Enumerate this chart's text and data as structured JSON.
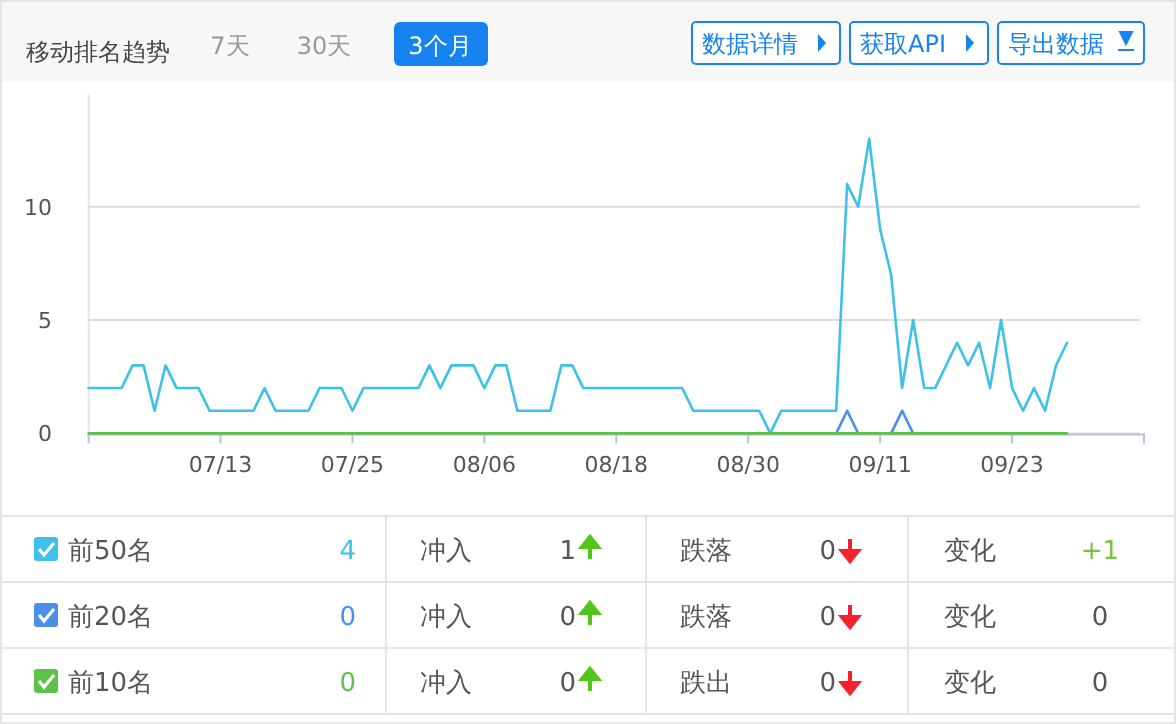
{
  "chart_data": {
    "type": "line",
    "title": "移动排名趋势",
    "x": [
      "--07-01",
      "--07-02",
      "--07-03",
      "--07-04",
      "--07-05",
      "--07-06",
      "--07-07",
      "--07-08",
      "--07-09",
      "--07-10",
      "--07-11",
      "--07-12",
      "--07-13",
      "--07-14",
      "--07-15",
      "--07-16",
      "--07-17",
      "--07-18",
      "--07-19",
      "--07-20",
      "--07-21",
      "--07-22",
      "--07-23",
      "--07-24",
      "--07-25",
      "--07-26",
      "--07-27",
      "--07-28",
      "--07-29",
      "--07-30",
      "--07-31",
      "--08-01",
      "--08-02",
      "--08-03",
      "--08-04",
      "--08-05",
      "--08-06",
      "--08-07",
      "--08-08",
      "--08-09",
      "--08-10",
      "--08-11",
      "--08-12",
      "--08-13",
      "--08-14",
      "--08-15",
      "--08-16",
      "--08-17",
      "--08-18",
      "--08-19",
      "--08-20",
      "--08-21",
      "--08-22",
      "--08-23",
      "--08-24",
      "--08-25",
      "--08-26",
      "--08-27",
      "--08-28",
      "--08-29",
      "--08-30",
      "--08-31",
      "--09-01",
      "--09-02",
      "--09-03",
      "--09-04",
      "--09-05",
      "--09-06",
      "--09-07",
      "--09-08",
      "--09-09",
      "--09-10",
      "--09-11",
      "--09-12",
      "--09-13",
      "--09-14",
      "--09-15",
      "--09-16",
      "--09-17",
      "--09-18",
      "--09-19",
      "--09-20",
      "--09-21",
      "--09-22",
      "--09-23",
      "--09-24",
      "--09-25",
      "--09-26",
      "--09-27",
      "--09-28"
    ],
    "series": [
      {
        "name": "前50名",
        "color": "#3ec1e8",
        "values": [
          2,
          2,
          2,
          2,
          3,
          3,
          1,
          3,
          2,
          2,
          2,
          1,
          1,
          1,
          1,
          1,
          2,
          1,
          1,
          1,
          1,
          2,
          2,
          2,
          1,
          2,
          2,
          2,
          2,
          2,
          2,
          3,
          2,
          3,
          3,
          3,
          2,
          3,
          3,
          1,
          1,
          1,
          1,
          3,
          3,
          2,
          2,
          2,
          2,
          2,
          2,
          2,
          2,
          2,
          2,
          1,
          1,
          1,
          1,
          1,
          1,
          1,
          0,
          1,
          1,
          1,
          1,
          1,
          1,
          11,
          10,
          13,
          9,
          7,
          2,
          5,
          2,
          2,
          3,
          4,
          3,
          4,
          2,
          5,
          2,
          1,
          2,
          1,
          3,
          4
        ]
      },
      {
        "name": "前20名",
        "color": "#4a8fe8",
        "values": [
          null,
          null,
          null,
          null,
          null,
          null,
          null,
          null,
          null,
          null,
          null,
          null,
          null,
          null,
          null,
          null,
          null,
          null,
          null,
          null,
          null,
          null,
          null,
          null,
          null,
          null,
          null,
          null,
          null,
          null,
          null,
          null,
          null,
          null,
          null,
          null,
          null,
          null,
          null,
          null,
          null,
          null,
          null,
          null,
          null,
          null,
          null,
          null,
          null,
          null,
          null,
          null,
          null,
          null,
          null,
          null,
          null,
          null,
          null,
          null,
          null,
          null,
          null,
          null,
          null,
          null,
          null,
          null,
          0,
          1,
          0,
          null,
          null,
          0,
          1,
          0,
          null,
          null,
          null,
          null,
          null,
          null,
          null,
          null,
          null,
          null,
          null,
          null,
          null,
          null
        ]
      },
      {
        "name": "前10名",
        "color": "#5cc24a",
        "values": [
          0,
          0,
          0,
          0,
          0,
          0,
          0,
          0,
          0,
          0,
          0,
          0,
          0,
          0,
          0,
          0,
          0,
          0,
          0,
          0,
          0,
          0,
          0,
          0,
          0,
          0,
          0,
          0,
          0,
          0,
          0,
          0,
          0,
          0,
          0,
          0,
          0,
          0,
          0,
          0,
          0,
          0,
          0,
          0,
          0,
          0,
          0,
          0,
          0,
          0,
          0,
          0,
          0,
          0,
          0,
          0,
          0,
          0,
          0,
          0,
          0,
          0,
          0,
          0,
          0,
          0,
          0,
          0,
          0,
          0,
          0,
          0,
          0,
          0,
          0,
          0,
          0,
          0,
          0,
          0,
          0,
          0,
          0,
          0,
          0,
          0,
          0,
          0,
          0,
          0
        ]
      }
    ],
    "xlim": [
      "--07-01",
      "--10-05"
    ],
    "xticks": [
      {
        "value": "--07-01",
        "label": null
      },
      {
        "value": "--07-13",
        "label": "07/13"
      },
      {
        "value": "--07-25",
        "label": "07/25"
      },
      {
        "value": "--08-06",
        "label": "08/06"
      },
      {
        "value": "--08-18",
        "label": "08/18"
      },
      {
        "value": "--08-30",
        "label": "08/30"
      },
      {
        "value": "--09-11",
        "label": "09/11"
      },
      {
        "value": "--09-23",
        "label": "09/23"
      },
      {
        "value": "--10-05",
        "label": null
      }
    ],
    "ylim": [
      0,
      15
    ],
    "yticks": [
      0,
      5,
      10
    ],
    "grid": "y",
    "legend": "bottom",
    "marker": "none",
    "line_style": "solid",
    "annotations": [
      "7天",
      "30天",
      "3个月",
      "数据详情",
      "获取API",
      "导出数据",
      "4",
      "冲入",
      "1",
      "跌落",
      "0",
      "变化",
      "+1",
      "0",
      "冲入",
      "0",
      "跌落",
      "0",
      "变化",
      "0",
      "0",
      "冲入",
      "0",
      "跌出",
      "0",
      "变化",
      "0"
    ]
  }
}
